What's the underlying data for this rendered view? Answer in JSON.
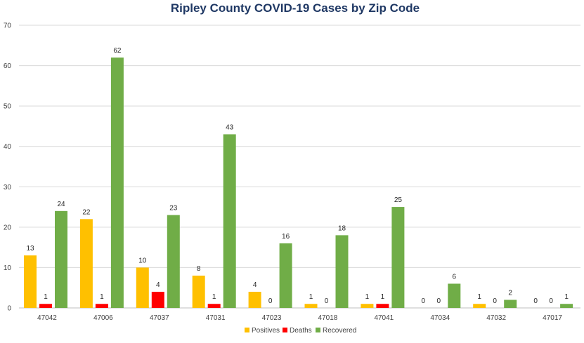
{
  "chart_data": {
    "type": "bar",
    "title": "Ripley County COVID-19 Cases by Zip Code",
    "categories": [
      "47042",
      "47006",
      "47037",
      "47031",
      "47023",
      "47018",
      "47041",
      "47034",
      "47032",
      "47017"
    ],
    "series": [
      {
        "name": "Positives",
        "color": "#ffc000",
        "values": [
          13,
          22,
          10,
          8,
          4,
          1,
          1,
          0,
          1,
          0
        ]
      },
      {
        "name": "Deaths",
        "color": "#ff0000",
        "values": [
          1,
          1,
          4,
          1,
          0,
          0,
          1,
          0,
          0,
          0
        ]
      },
      {
        "name": "Recovered",
        "color": "#70ad47",
        "values": [
          24,
          62,
          23,
          43,
          16,
          18,
          25,
          6,
          2,
          1
        ]
      }
    ],
    "ylim": [
      0,
      70
    ],
    "yticks": [
      0,
      10,
      20,
      30,
      40,
      50,
      60,
      70
    ],
    "grid": true,
    "legend_position": "bottom"
  }
}
